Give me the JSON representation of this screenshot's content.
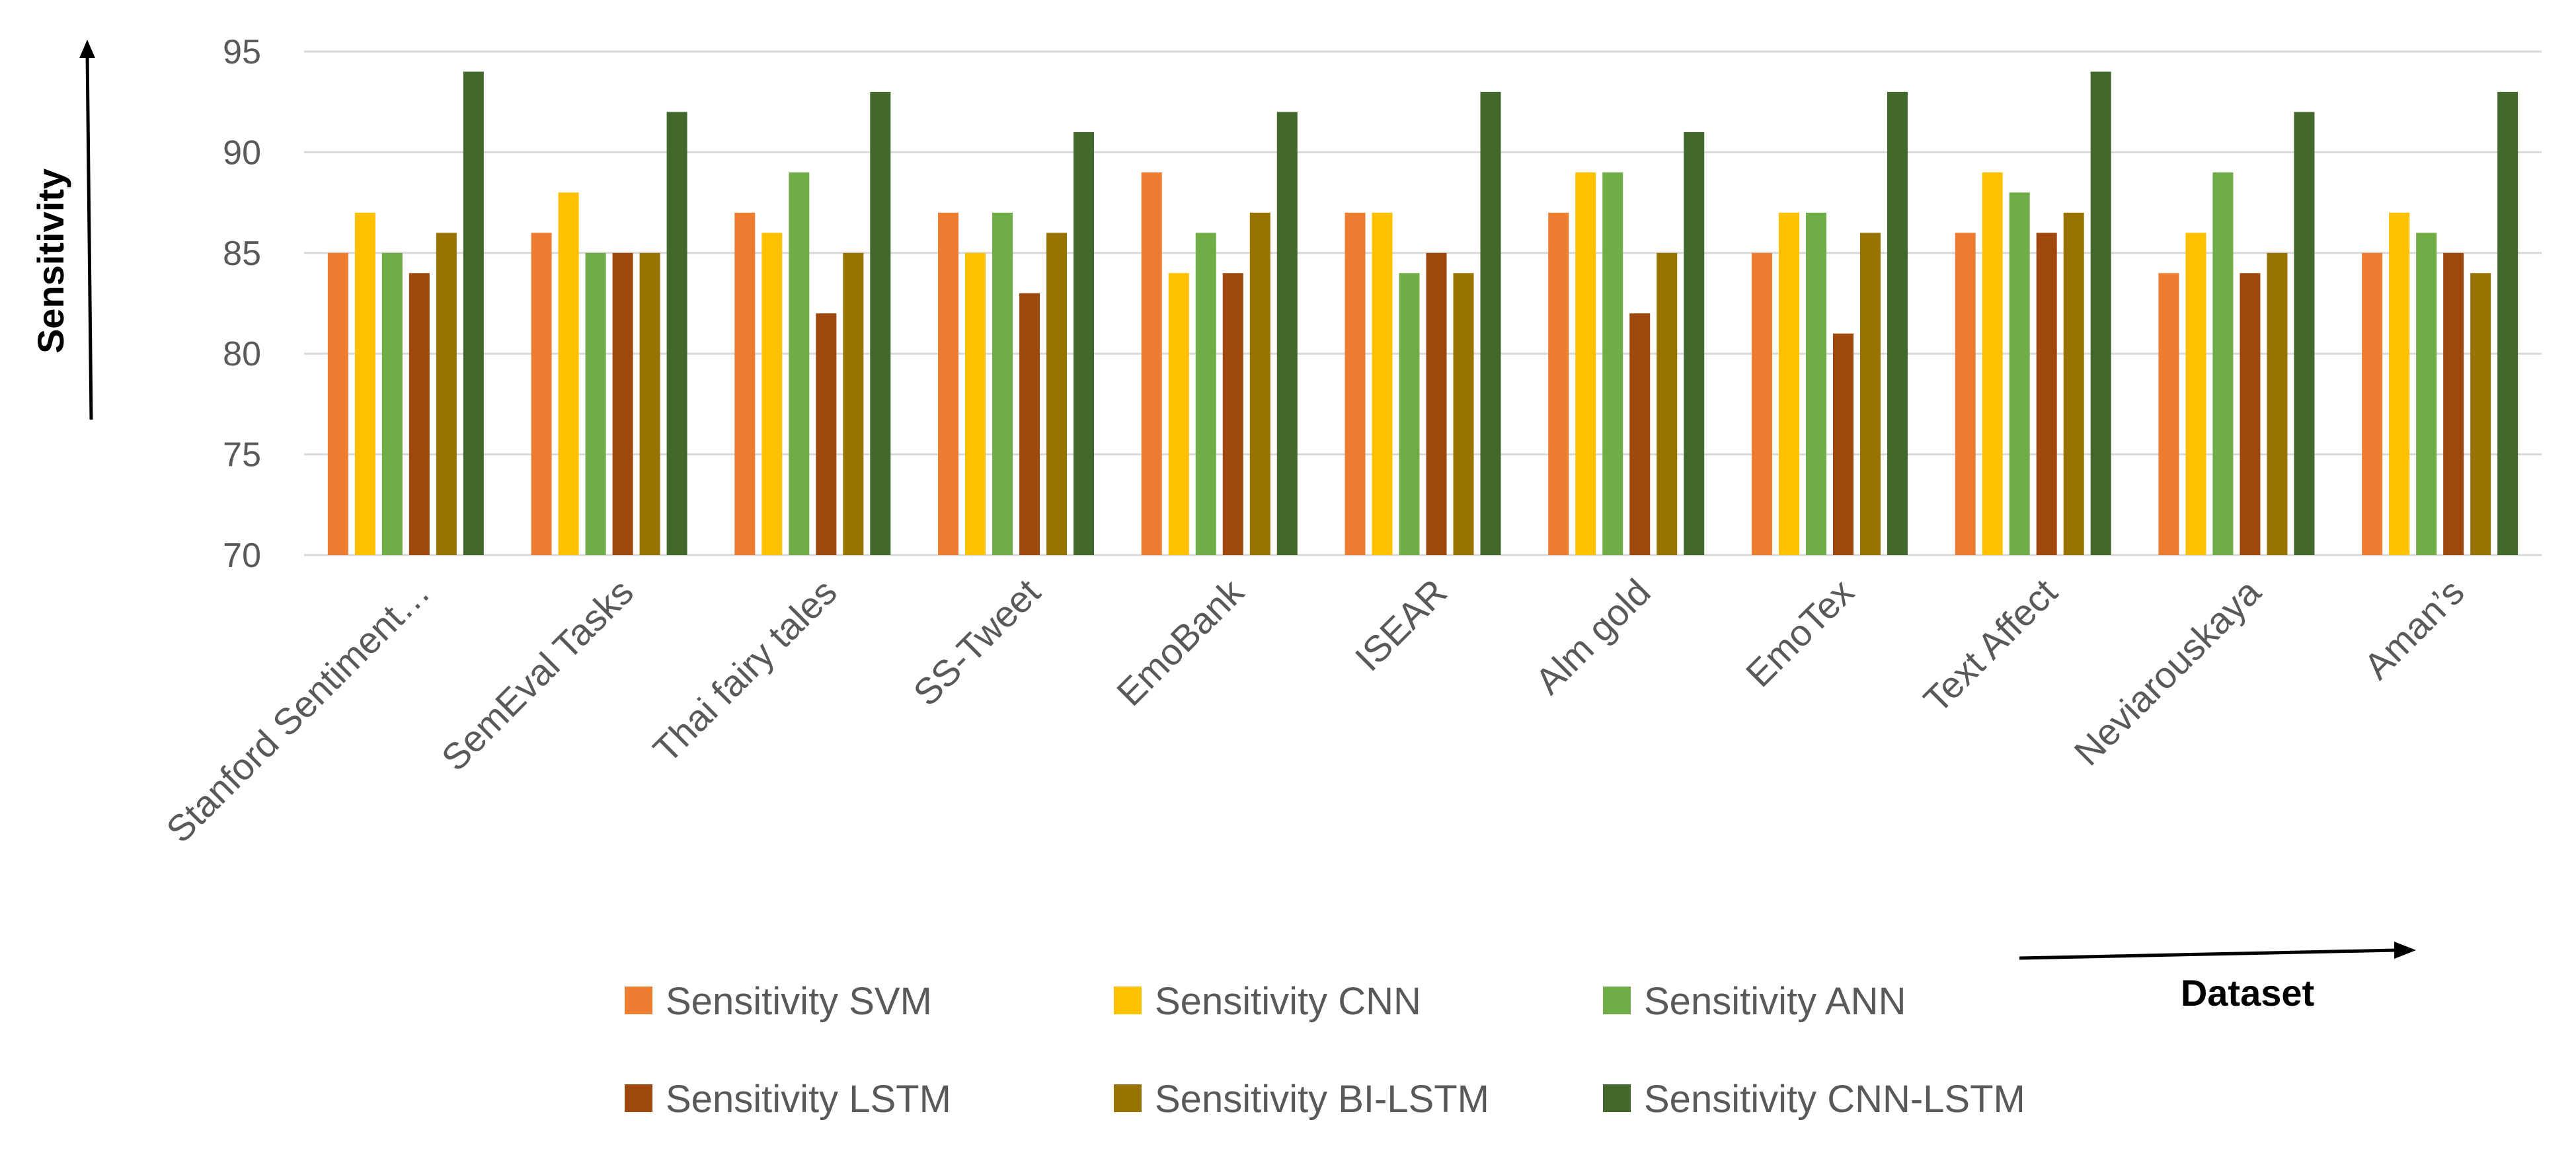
{
  "chart_data": {
    "type": "bar",
    "title": "",
    "xlabel": "Dataset",
    "ylabel": "Sensitivity",
    "ylim": [
      70,
      95
    ],
    "yticks": [
      70,
      75,
      80,
      85,
      90,
      95
    ],
    "grid": true,
    "legend_position": "bottom",
    "categories": [
      "Stanford Sentiment…",
      "SemEval Tasks",
      "Thai fairy tales",
      "SS-Tweet",
      "EmoBank",
      "ISEAR",
      "Alm gold",
      "EmoTex",
      "Text Affect",
      "Neviarouskaya",
      "Aman’s"
    ],
    "series": [
      {
        "name": "Sensitivity SVM",
        "color": "#ED7D31",
        "values": [
          85,
          86,
          87,
          87,
          89,
          87,
          87,
          85,
          86,
          84,
          85
        ]
      },
      {
        "name": "Sensitivity CNN",
        "color": "#FFC000",
        "values": [
          87,
          88,
          86,
          85,
          84,
          87,
          89,
          87,
          89,
          86,
          87
        ]
      },
      {
        "name": "Sensitivity ANN",
        "color": "#70AD47",
        "values": [
          85,
          85,
          89,
          87,
          86,
          84,
          89,
          87,
          88,
          89,
          86
        ]
      },
      {
        "name": "Sensitivity LSTM",
        "color": "#9E480E",
        "values": [
          84,
          85,
          82,
          83,
          84,
          85,
          82,
          81,
          86,
          84,
          85
        ]
      },
      {
        "name": "Sensitivity BI-LSTM",
        "color": "#997300",
        "values": [
          86,
          85,
          85,
          86,
          87,
          84,
          85,
          86,
          87,
          85,
          84
        ]
      },
      {
        "name": "Sensitivity CNN-LSTM",
        "color": "#43682B",
        "values": [
          94,
          92,
          93,
          91,
          92,
          93,
          91,
          93,
          94,
          92,
          93
        ]
      }
    ]
  }
}
